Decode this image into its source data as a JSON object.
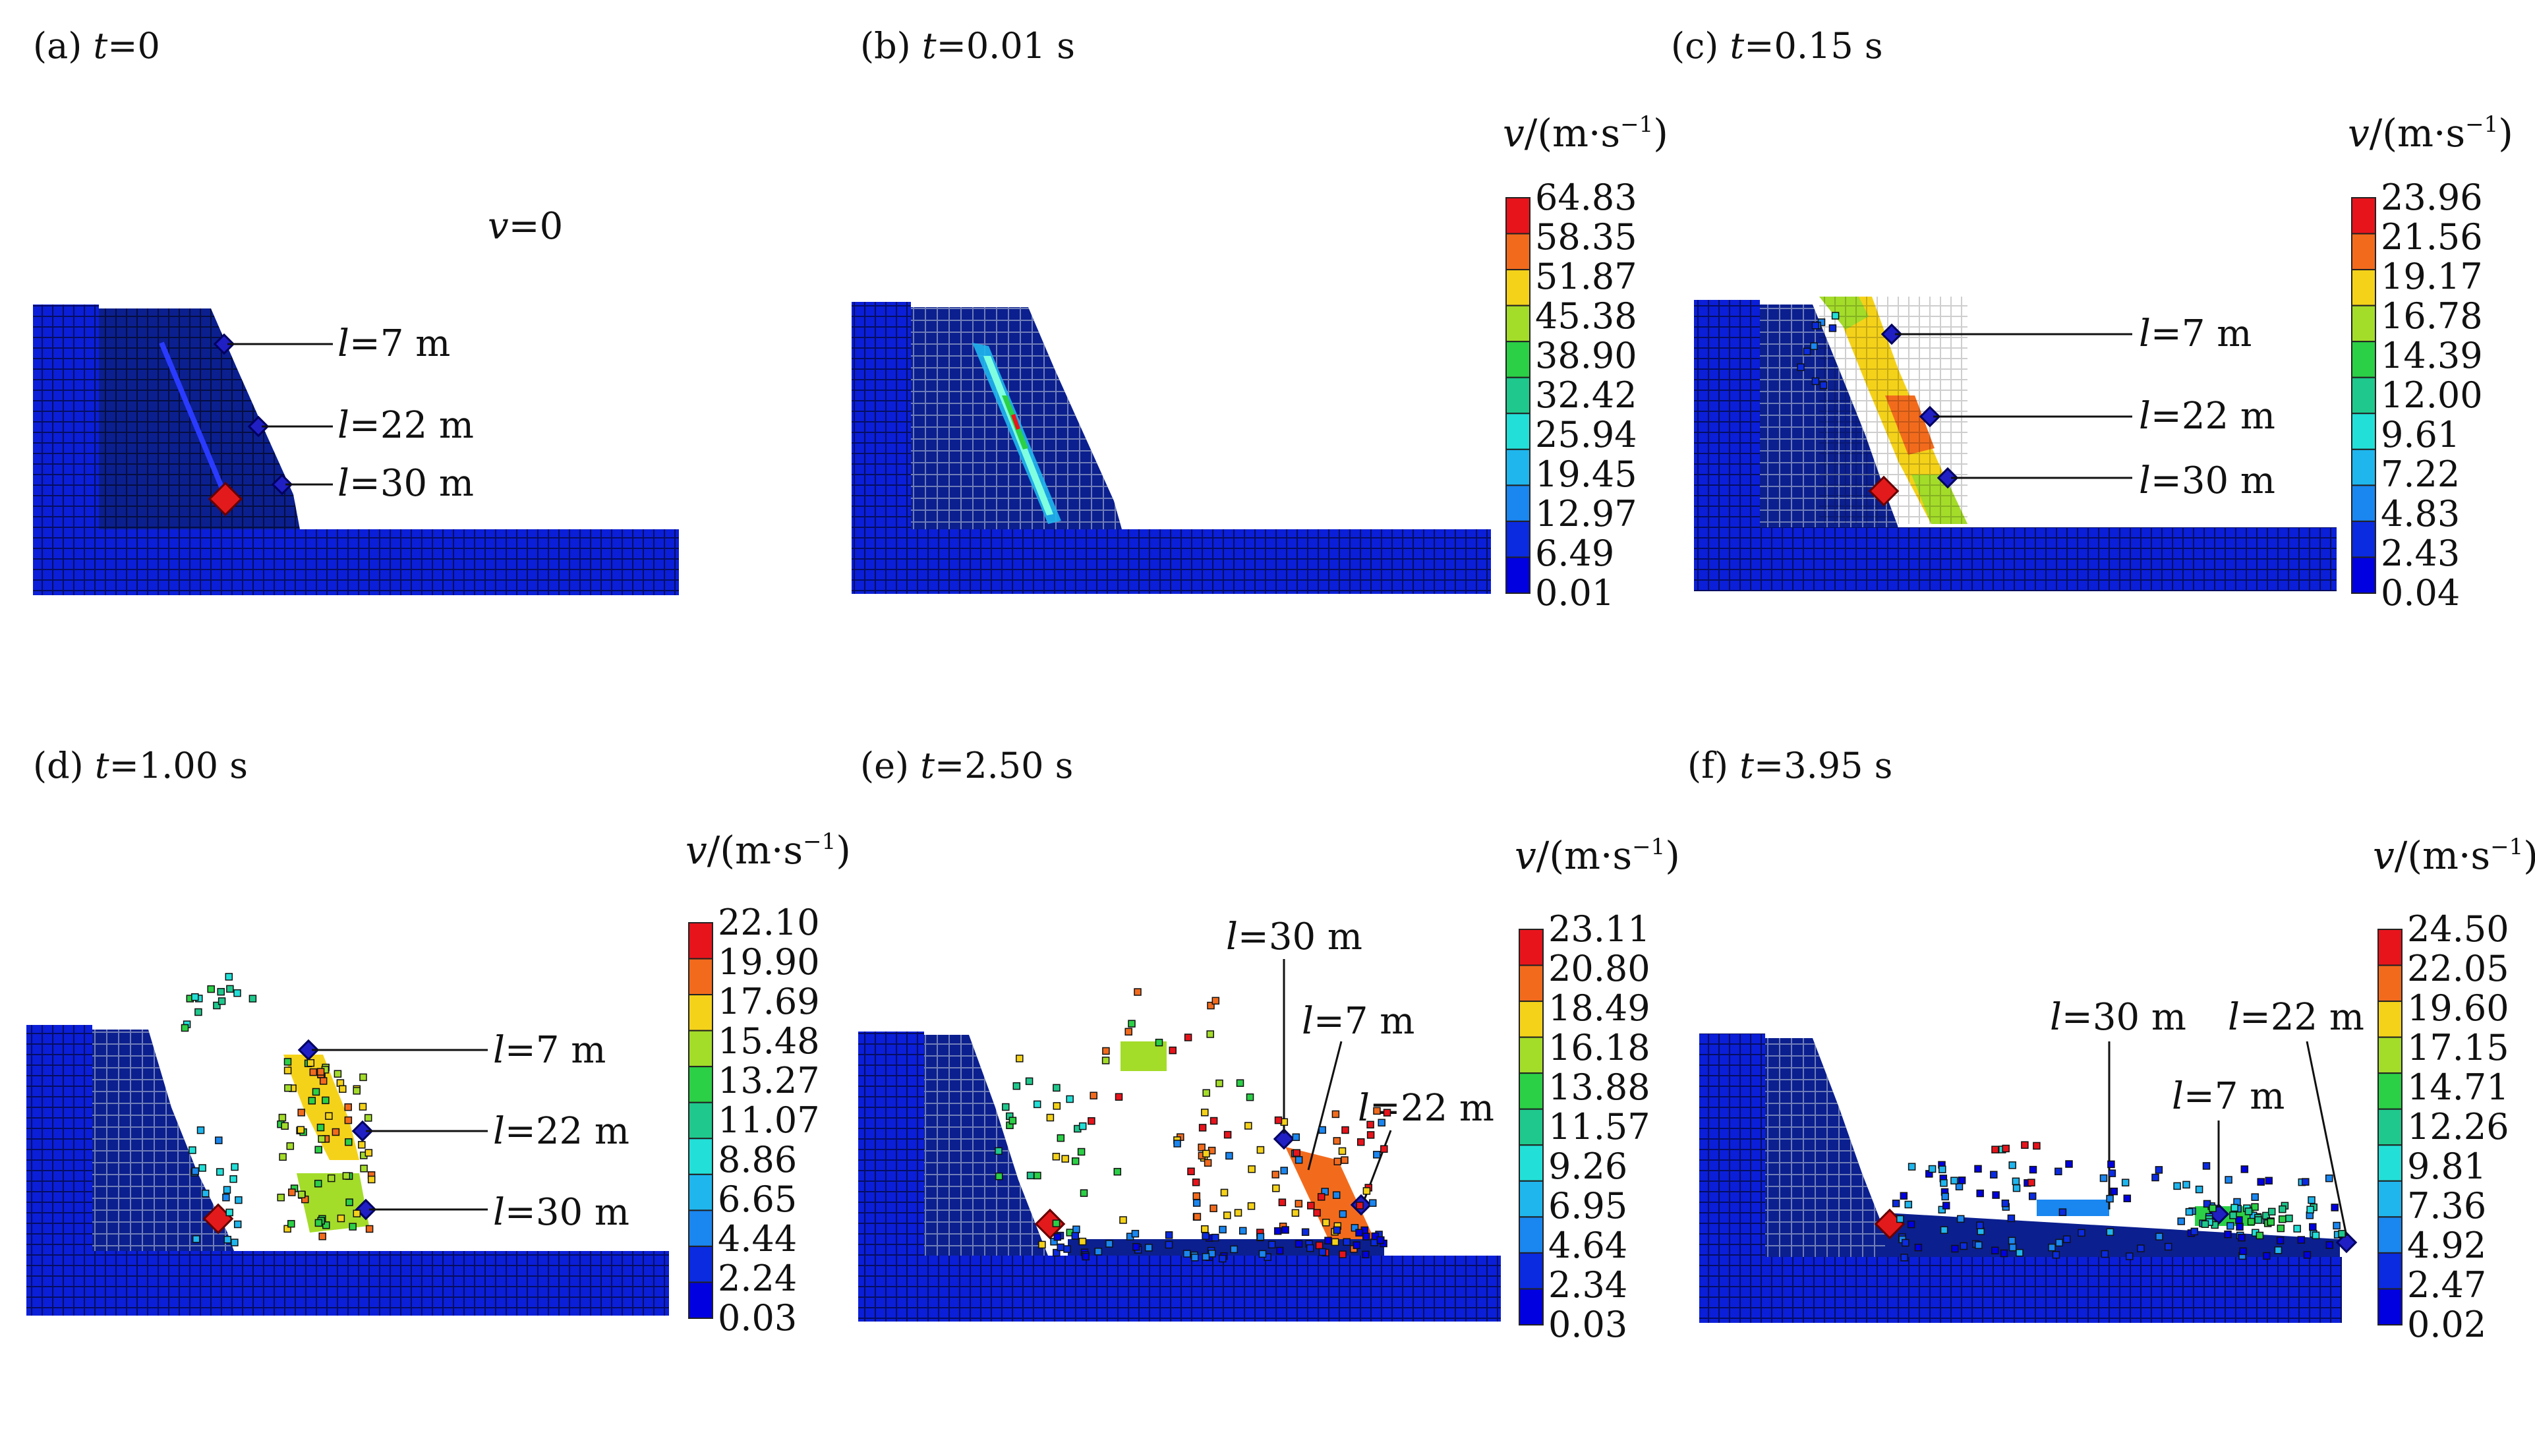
{
  "figure": {
    "legend_title": {
      "v": "v",
      "unit": "/(m·s",
      "exp": "−1",
      "close": ")"
    },
    "panels": [
      {
        "id": "a",
        "prefix": "(a) ",
        "t": "t",
        "time": "=0",
        "note": {
          "v": "v",
          "rest": "=0"
        },
        "labels": [
          {
            "l": "l",
            "text": "=7 m"
          },
          {
            "l": "l",
            "text": "=22 m"
          },
          {
            "l": "l",
            "text": "=30 m"
          }
        ],
        "colorbar": null
      },
      {
        "id": "b",
        "prefix": "(b) ",
        "t": "t",
        "time": "=0.01 s",
        "labels": [],
        "colorbar": [
          "64.83",
          "58.35",
          "51.87",
          "45.38",
          "38.90",
          "32.42",
          "25.94",
          "19.45",
          "12.97",
          "6.49",
          "0.01"
        ]
      },
      {
        "id": "c",
        "prefix": "(c) ",
        "t": "t",
        "time": "=0.15 s",
        "labels": [
          {
            "l": "l",
            "text": "=7 m"
          },
          {
            "l": "l",
            "text": "=22 m"
          },
          {
            "l": "l",
            "text": "=30 m"
          }
        ],
        "colorbar": [
          "23.96",
          "21.56",
          "19.17",
          "16.78",
          "14.39",
          "12.00",
          "9.61",
          "7.22",
          "4.83",
          "2.43",
          "0.04"
        ]
      },
      {
        "id": "d",
        "prefix": "(d) ",
        "t": "t",
        "time": "=1.00 s",
        "labels": [
          {
            "l": "l",
            "text": "=7 m"
          },
          {
            "l": "l",
            "text": "=22 m"
          },
          {
            "l": "l",
            "text": "=30 m"
          }
        ],
        "colorbar": [
          "22.10",
          "19.90",
          "17.69",
          "15.48",
          "13.27",
          "11.07",
          "8.86",
          "6.65",
          "4.44",
          "2.24",
          "0.03"
        ]
      },
      {
        "id": "e",
        "prefix": "(e) ",
        "t": "t",
        "time": "=2.50 s",
        "labels": [
          {
            "l": "l",
            "text": "=30 m"
          },
          {
            "l": "l",
            "text": "=7 m"
          },
          {
            "l": "l",
            "text": "=22 m"
          }
        ],
        "colorbar": [
          "23.11",
          "20.80",
          "18.49",
          "16.18",
          "13.88",
          "11.57",
          "9.26",
          "6.95",
          "4.64",
          "2.34",
          "0.03"
        ]
      },
      {
        "id": "f",
        "prefix": "(f) ",
        "t": "t",
        "time": "=3.95 s",
        "labels": [
          {
            "l": "l",
            "text": "=30 m"
          },
          {
            "l": "l",
            "text": "=22 m"
          },
          {
            "l": "l",
            "text": "=7 m"
          }
        ],
        "colorbar": [
          "24.50",
          "22.05",
          "19.60",
          "17.15",
          "14.71",
          "12.26",
          "9.81",
          "7.36",
          "4.92",
          "2.47",
          "0.02"
        ]
      }
    ],
    "colors": {
      "scale": [
        "#e8141c",
        "#f26b1d",
        "#f5d21a",
        "#a4dc2a",
        "#2bd046",
        "#1fc88d",
        "#22e0d8",
        "#1fb6ee",
        "#1a86f0",
        "#0a2be0",
        "#0000e0"
      ],
      "ground": "#0b1fd8",
      "slope": "#0b1f8f",
      "grid": "#7d8cb0",
      "marker_red": "#e31a1c",
      "marker_blue": "#1f1fc4"
    }
  }
}
